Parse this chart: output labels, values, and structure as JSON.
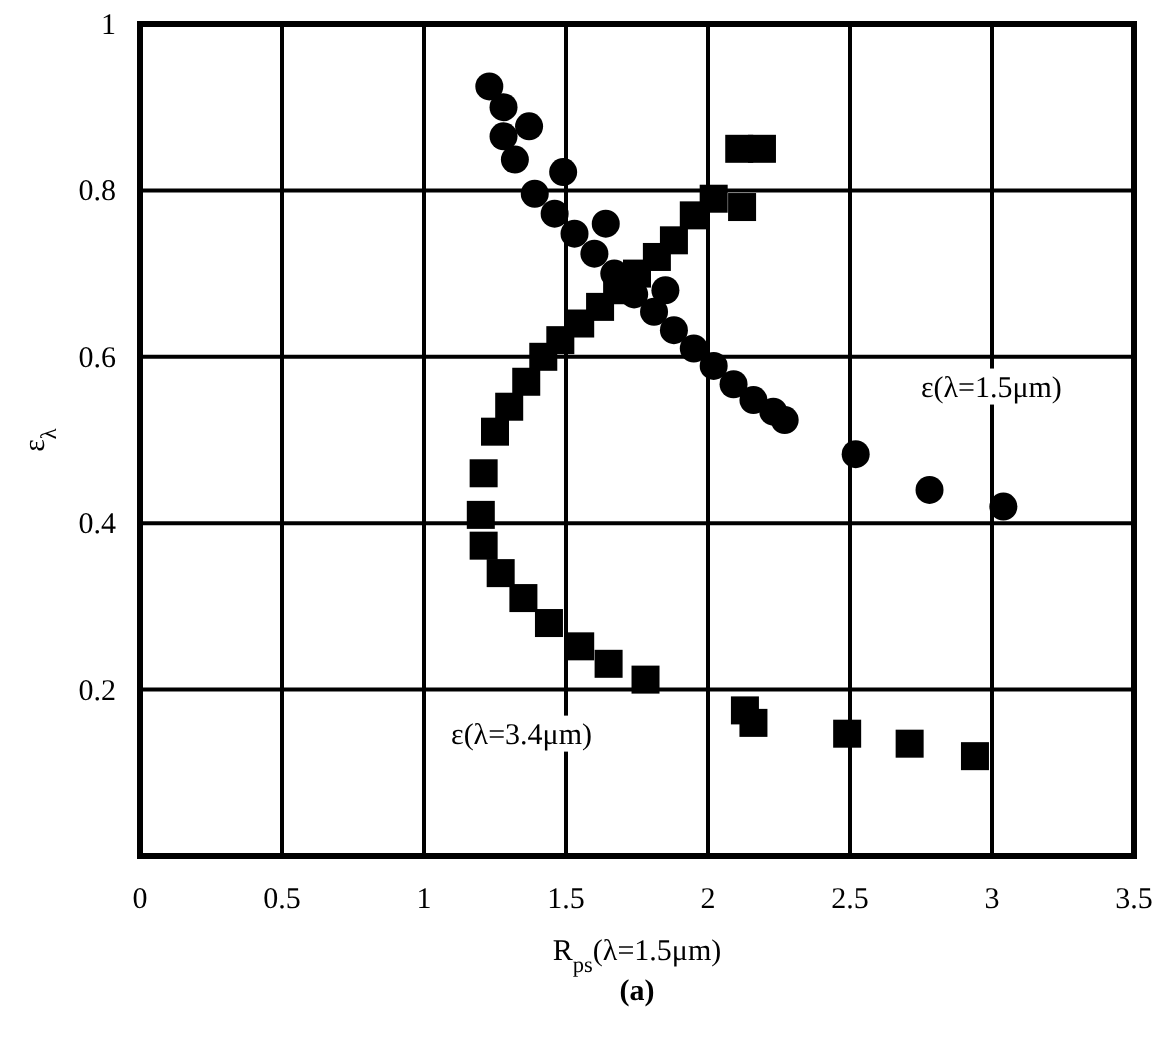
{
  "chart_data": {
    "type": "scatter",
    "xlabel": "R$_{ps}$(λ=1.5μm)",
    "ylabel": "ε$_{λ}$",
    "xlim": [
      0,
      3.5
    ],
    "ylim": [
      0,
      1
    ],
    "xticks": [
      0,
      0.5,
      1,
      1.5,
      2,
      2.5,
      3,
      3.5
    ],
    "yticks": [
      0.2,
      0.4,
      0.6,
      0.8,
      1
    ],
    "grid": true,
    "series": [
      {
        "name": "ε(λ=1.5μm)",
        "color": "#000000",
        "marker": "circle",
        "x": [
          1.23,
          1.28,
          1.37,
          1.28,
          1.32,
          1.49,
          1.39,
          1.46,
          1.64,
          1.53,
          1.6,
          1.67,
          1.85,
          1.74,
          1.81,
          1.88,
          1.95,
          2.02,
          2.09,
          2.16,
          2.23,
          2.27,
          2.52,
          2.78,
          3.04
        ],
        "values": [
          0.925,
          0.9,
          0.877,
          0.865,
          0.837,
          0.822,
          0.796,
          0.772,
          0.76,
          0.748,
          0.724,
          0.7,
          0.68,
          0.675,
          0.654,
          0.632,
          0.61,
          0.589,
          0.567,
          0.548,
          0.534,
          0.524,
          0.483,
          0.44,
          0.42
        ]
      },
      {
        "name": "ε(λ=3.4μm)",
        "color": "#000000",
        "marker": "square",
        "x": [
          2.19,
          2.11,
          2.12,
          2.02,
          1.95,
          1.88,
          1.82,
          1.75,
          1.68,
          1.62,
          1.55,
          1.48,
          1.42,
          1.36,
          1.3,
          1.25,
          1.21,
          1.2,
          1.21,
          1.27,
          1.35,
          1.44,
          1.55,
          1.65,
          1.78,
          2.13,
          2.16,
          2.49,
          2.71,
          2.94
        ],
        "values": [
          0.85,
          0.85,
          0.78,
          0.79,
          0.77,
          0.74,
          0.72,
          0.7,
          0.68,
          0.66,
          0.64,
          0.62,
          0.6,
          0.57,
          0.54,
          0.51,
          0.46,
          0.41,
          0.373,
          0.34,
          0.31,
          0.28,
          0.252,
          0.231,
          0.212,
          0.175,
          0.16,
          0.147,
          0.135,
          0.12
        ]
      }
    ],
    "annotations": [
      "(a)"
    ]
  }
}
